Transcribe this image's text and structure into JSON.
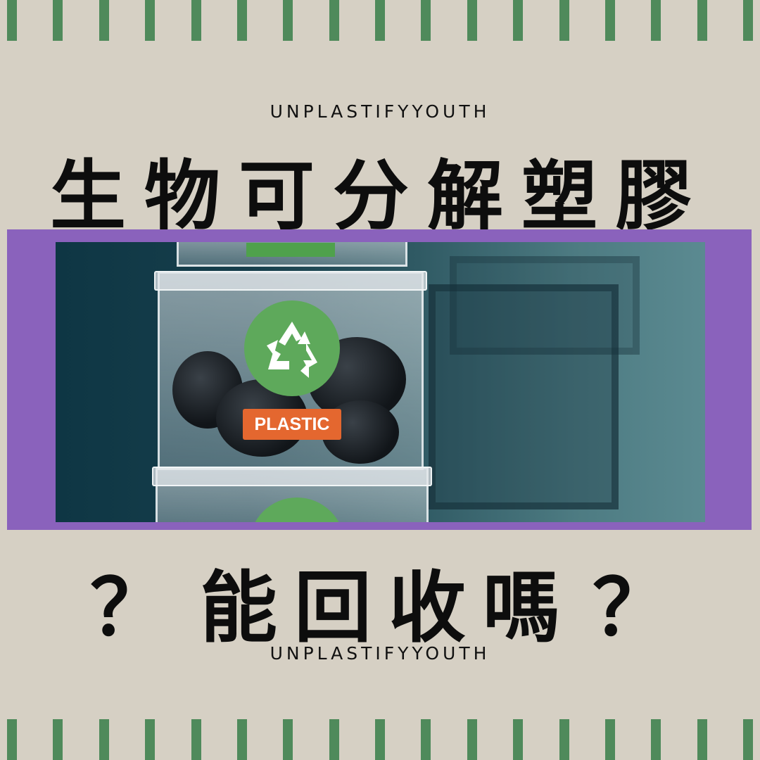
{
  "brand_top": "UNPLASTIFYYOUTH",
  "headline": "生物可分解塑膠",
  "photo": {
    "label": "PLASTIC",
    "icon": "recycle-icon"
  },
  "question": {
    "left_mark": "？",
    "chars": [
      "能",
      "回",
      "收",
      "嗎"
    ],
    "right_mark": "？"
  },
  "brand_bottom": "UNPLASTIFYYOUTH",
  "colors": {
    "background": "#d6d0c4",
    "stripe": "#4f8a5b",
    "frame": "#8a62bc",
    "label": "#e4672f",
    "recycle": "#5ea95b"
  }
}
